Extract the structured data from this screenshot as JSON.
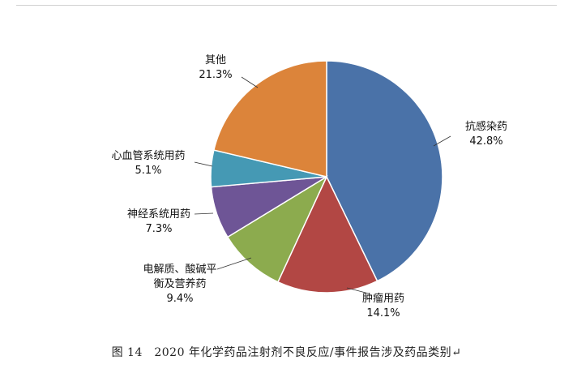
{
  "chart_data": {
    "type": "pie",
    "title": "",
    "slices": [
      {
        "label": "抗感染药",
        "value": 42.8,
        "display": "42.8%",
        "color": "#4A72A8"
      },
      {
        "label": "肿瘤用药",
        "value": 14.1,
        "display": "14.1%",
        "color": "#B24744"
      },
      {
        "label": "电解质、酸碱平衡及营养药",
        "label_lines": [
          "电解质、酸碱平",
          "衡及营养药"
        ],
        "value": 9.4,
        "display": "9.4%",
        "color": "#8CAB4E"
      },
      {
        "label": "神经系统用药",
        "value": 7.3,
        "display": "7.3%",
        "color": "#6E5596"
      },
      {
        "label": "心血管系统用药",
        "value": 5.1,
        "display": "5.1%",
        "color": "#4599B4"
      },
      {
        "label": "其他",
        "value": 21.3,
        "display": "21.3%",
        "color": "#DC843A"
      }
    ],
    "start": "12 o'clock, clockwise"
  },
  "caption": "图 14　2020 年化学药品注射剂不良反应/事件报告涉及药品类别↵"
}
